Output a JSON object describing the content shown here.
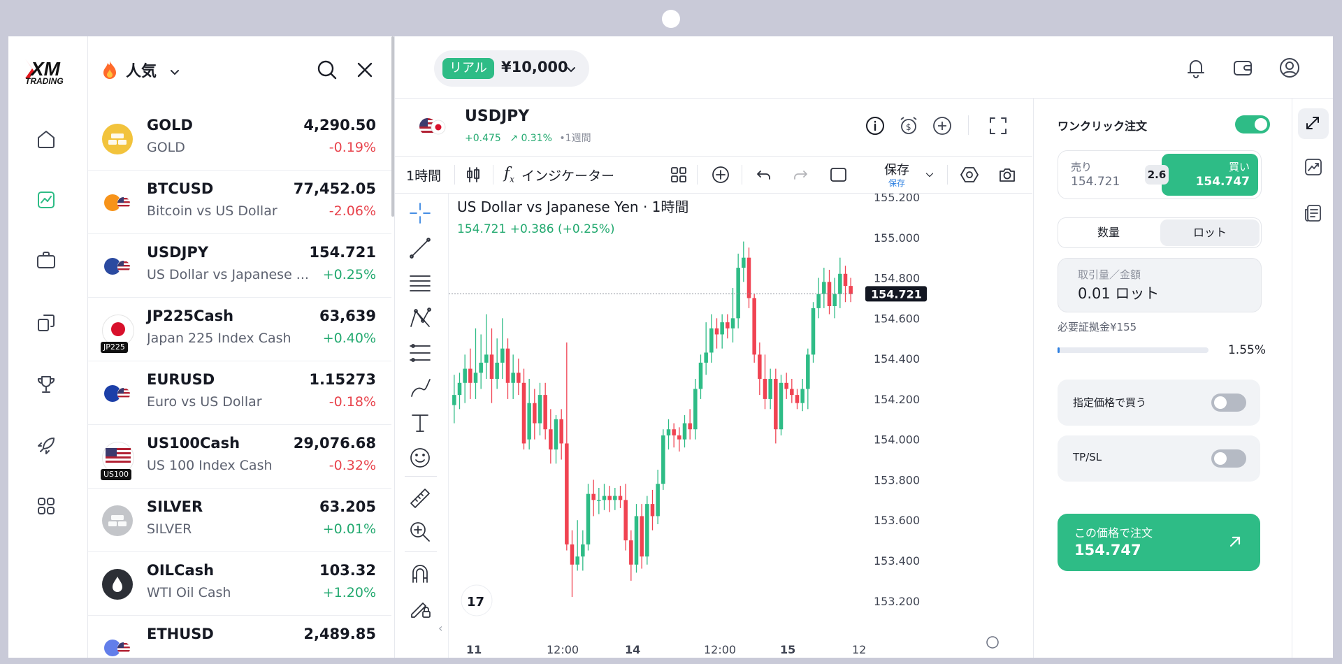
{
  "brand": {
    "name": "XM",
    "sub": "TRADING"
  },
  "watchlist": {
    "category": "人気",
    "items": [
      {
        "symbol": "GOLD",
        "name": "GOLD",
        "price": "4,290.50",
        "change": "-0.19%",
        "dir": "neg",
        "icon": "gold-bars-icon",
        "color": "#f2c33c"
      },
      {
        "symbol": "BTCUSD",
        "name": "Bitcoin vs US Dollar",
        "price": "77,452.05",
        "change": "-2.06%",
        "dir": "neg",
        "icon": "btc-usd-flags-icon",
        "color": "#f7931a"
      },
      {
        "symbol": "USDJPY",
        "name": "US Dollar vs Japanese ...",
        "price": "154.721",
        "change": "+0.25%",
        "dir": "pos",
        "icon": "usd-jpy-flags-icon",
        "color": "#2b4aa0"
      },
      {
        "symbol": "JP225Cash",
        "name": "Japan 225 Index Cash",
        "price": "63,639",
        "change": "+0.40%",
        "dir": "pos",
        "icon": "japan-flag-icon",
        "badge": "JP225",
        "color": "#d8102b"
      },
      {
        "symbol": "EURUSD",
        "name": "Euro vs US Dollar",
        "price": "1.15273",
        "change": "-0.18%",
        "dir": "neg",
        "icon": "eur-usd-flags-icon",
        "color": "#1c3fa8"
      },
      {
        "symbol": "US100Cash",
        "name": "US 100 Index Cash",
        "price": "29,076.68",
        "change": "-0.32%",
        "dir": "neg",
        "icon": "us-flag-icon",
        "badge": "US100",
        "color": "#b22234"
      },
      {
        "symbol": "SILVER",
        "name": "SILVER",
        "price": "63.205",
        "change": "+0.01%",
        "dir": "pos",
        "icon": "silver-bars-icon",
        "color": "#c3c5c9"
      },
      {
        "symbol": "OILCash",
        "name": "WTI Oil Cash",
        "price": "103.32",
        "change": "+1.20%",
        "dir": "pos",
        "icon": "oil-drop-icon",
        "color": "#2c2f36"
      },
      {
        "symbol": "ETHUSD",
        "name": "",
        "price": "2,489.85",
        "change": "",
        "dir": "pos",
        "icon": "eth-usd-flags-icon",
        "color": "#627eea"
      }
    ]
  },
  "account": {
    "type": "リアル",
    "balance": "¥10,000"
  },
  "instrument": {
    "symbol": "USDJPY",
    "change_abs": "+0.475",
    "change_pct": "0.31%",
    "period": "1週間"
  },
  "toolbar": {
    "interval": "1時間",
    "indicators": "インジケーター",
    "save": "保存",
    "save_sub": "保存"
  },
  "chart_data": {
    "type": "candlestick",
    "title": "US Dollar vs Japanese Yen · 1時間",
    "last_price": "154.721",
    "last_change": "+0.386 (+0.25%)",
    "price_ticks": [
      "155.200",
      "155.000",
      "154.800",
      "154.600",
      "154.400",
      "154.200",
      "154.000",
      "153.800",
      "153.600",
      "153.400",
      "153.200"
    ],
    "x_ticks": [
      "11",
      "12:00",
      "14",
      "12:00",
      "15",
      "12"
    ],
    "ylim": [
      153.13,
      155.2
    ],
    "candles": [
      [
        154.17,
        154.22,
        154.08,
        154.32
      ],
      [
        154.22,
        154.28,
        154.15,
        154.33
      ],
      [
        154.28,
        154.35,
        154.18,
        154.42
      ],
      [
        154.35,
        154.28,
        154.2,
        154.45
      ],
      [
        154.28,
        154.33,
        154.2,
        154.55
      ],
      [
        154.33,
        154.38,
        154.25,
        154.52
      ],
      [
        154.38,
        154.42,
        154.3,
        154.62
      ],
      [
        154.42,
        154.3,
        154.18,
        154.55
      ],
      [
        154.3,
        154.38,
        154.25,
        154.5
      ],
      [
        154.38,
        154.45,
        154.3,
        154.6
      ],
      [
        154.45,
        154.28,
        154.2,
        154.5
      ],
      [
        154.28,
        154.33,
        154.2,
        154.42
      ],
      [
        154.33,
        154.28,
        154.22,
        154.4
      ],
      [
        154.28,
        153.98,
        153.95,
        154.35
      ],
      [
        154.0,
        154.18,
        153.95,
        154.3
      ],
      [
        154.18,
        154.08,
        154.0,
        154.25
      ],
      [
        154.08,
        154.22,
        154.02,
        154.28
      ],
      [
        154.22,
        154.05,
        154.0,
        154.28
      ],
      [
        154.05,
        153.95,
        153.88,
        154.15
      ],
      [
        153.95,
        154.1,
        153.88,
        154.12
      ],
      [
        154.1,
        153.98,
        153.9,
        154.15
      ],
      [
        153.98,
        153.48,
        153.45,
        154.48
      ],
      [
        153.48,
        153.38,
        153.22,
        153.55
      ],
      [
        153.38,
        153.42,
        153.35,
        153.6
      ],
      [
        153.42,
        153.48,
        153.35,
        153.55
      ],
      [
        153.48,
        153.73,
        153.45,
        153.78
      ],
      [
        153.73,
        153.7,
        153.62,
        153.8
      ],
      [
        153.7,
        153.7,
        153.63,
        153.76
      ],
      [
        153.7,
        153.72,
        153.65,
        153.78
      ],
      [
        153.72,
        153.7,
        153.64,
        153.77
      ],
      [
        153.7,
        153.72,
        153.65,
        153.76
      ],
      [
        153.72,
        153.7,
        153.66,
        153.77
      ],
      [
        153.7,
        153.5,
        153.45,
        153.78
      ],
      [
        153.5,
        153.38,
        153.3,
        153.55
      ],
      [
        153.38,
        153.62,
        153.34,
        153.68
      ],
      [
        153.62,
        153.42,
        153.36,
        153.68
      ],
      [
        153.42,
        153.68,
        153.38,
        153.72
      ],
      [
        153.68,
        153.62,
        153.55,
        153.75
      ],
      [
        153.62,
        153.78,
        153.58,
        153.85
      ],
      [
        153.78,
        154.02,
        153.75,
        154.05
      ],
      [
        154.02,
        154.05,
        153.95,
        154.1
      ],
      [
        154.05,
        154.02,
        153.96,
        154.08
      ],
      [
        154.02,
        154.0,
        153.94,
        154.06
      ],
      [
        154.0,
        154.08,
        153.96,
        154.12
      ],
      [
        154.08,
        154.05,
        154.0,
        154.15
      ],
      [
        154.05,
        154.25,
        154.0,
        154.3
      ],
      [
        154.25,
        154.38,
        154.2,
        154.42
      ],
      [
        154.38,
        154.43,
        154.32,
        154.58
      ],
      [
        154.43,
        154.55,
        154.38,
        154.62
      ],
      [
        154.55,
        154.52,
        154.45,
        154.6
      ],
      [
        154.52,
        154.58,
        154.45,
        154.62
      ],
      [
        154.58,
        154.55,
        154.5,
        154.62
      ],
      [
        154.55,
        154.6,
        154.48,
        154.75
      ],
      [
        154.6,
        154.85,
        154.55,
        154.92
      ],
      [
        154.85,
        154.9,
        154.78,
        154.98
      ],
      [
        154.9,
        154.7,
        154.65,
        154.95
      ],
      [
        154.7,
        154.42,
        154.38,
        154.72
      ],
      [
        154.42,
        154.3,
        154.22,
        154.48
      ],
      [
        154.3,
        154.2,
        154.15,
        154.42
      ],
      [
        154.2,
        154.3,
        154.15,
        154.35
      ],
      [
        154.3,
        154.05,
        153.98,
        154.35
      ],
      [
        154.05,
        154.28,
        154.02,
        154.32
      ],
      [
        154.28,
        154.25,
        154.2,
        154.33
      ],
      [
        154.25,
        154.22,
        154.18,
        154.3
      ],
      [
        154.22,
        154.18,
        154.15,
        154.25
      ],
      [
        154.18,
        154.25,
        154.14,
        154.3
      ],
      [
        154.25,
        154.42,
        154.15,
        154.45
      ],
      [
        154.42,
        154.65,
        154.38,
        154.68
      ],
      [
        154.65,
        154.72,
        154.6,
        154.8
      ],
      [
        154.72,
        154.78,
        154.65,
        154.85
      ],
      [
        154.78,
        154.66,
        154.62,
        154.84
      ],
      [
        154.66,
        154.72,
        154.6,
        154.8
      ],
      [
        154.72,
        154.82,
        154.65,
        154.9
      ],
      [
        154.82,
        154.76,
        154.68,
        154.86
      ],
      [
        154.76,
        154.72,
        154.68,
        154.8
      ]
    ]
  },
  "order": {
    "one_click": "ワンクリック注文",
    "sell_label": "売り",
    "sell_price": "154.721",
    "spread": "2.6",
    "buy_label": "買い",
    "buy_price": "154.747",
    "tab_quantity": "数量",
    "tab_lot": "ロット",
    "volume_label": "取引量／金額",
    "volume_value": "0.01 ロット",
    "margin_label": "必要証拠金¥155",
    "margin_pct": "1.55%",
    "margin_fill": 0.0155,
    "limit_label": "指定価格で買う",
    "tpsl_label": "TP/SL",
    "cta_label": "この価格で注文",
    "cta_price": "154.747",
    "accent": "#2ebc86",
    "down": "#f04352"
  }
}
